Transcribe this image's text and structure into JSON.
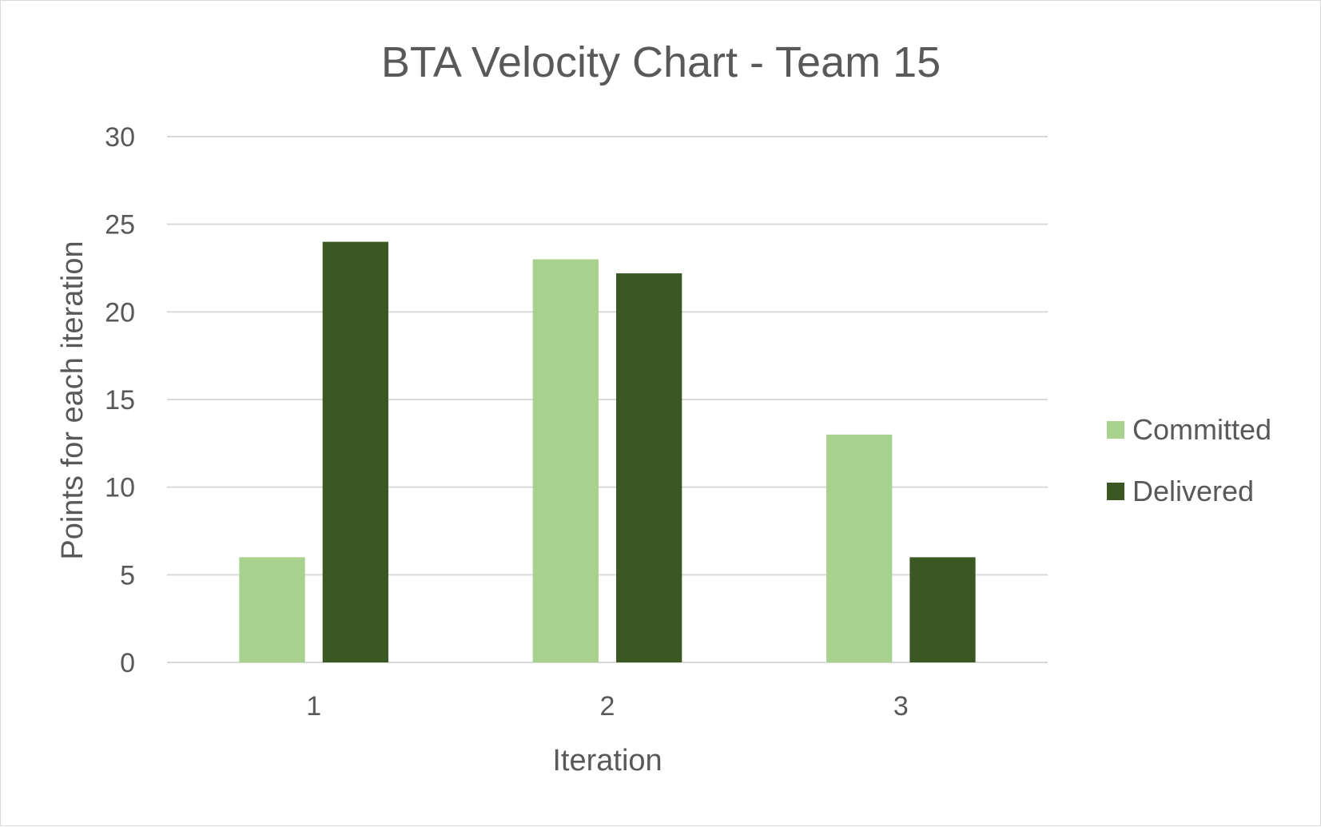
{
  "chart_data": {
    "type": "bar",
    "title": "BTA Velocity Chart - Team 15",
    "xlabel": "Iteration",
    "ylabel": "Points for each iteration",
    "categories": [
      "1",
      "2",
      "3"
    ],
    "series": [
      {
        "name": "Committed",
        "values": [
          6,
          23,
          13
        ],
        "color": "#a9d18e"
      },
      {
        "name": "Delivered",
        "values": [
          24,
          22.2,
          6
        ],
        "color": "#3b5724"
      }
    ],
    "ylim": [
      0,
      30
    ],
    "yticks": [
      0,
      5,
      10,
      15,
      20,
      25,
      30
    ],
    "grid": true,
    "gridColor": "#d9d9d9",
    "legend_position": "right"
  }
}
